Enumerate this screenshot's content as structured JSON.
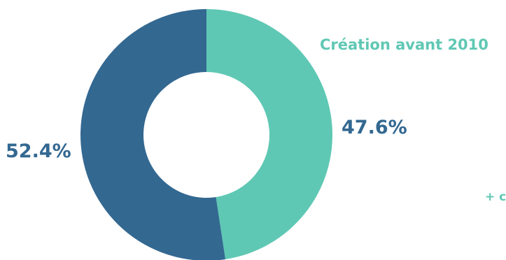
{
  "chart_data": {
    "type": "pie",
    "categories": [
      "Création avant 2010",
      "+ c"
    ],
    "values": [
      47.6,
      52.4
    ],
    "value_labels": [
      "47.6%",
      "52.4%"
    ],
    "colors": [
      "#5fc8b4",
      "#336891"
    ],
    "donut": true,
    "start_angle_deg": 0,
    "direction": "clockwise"
  }
}
